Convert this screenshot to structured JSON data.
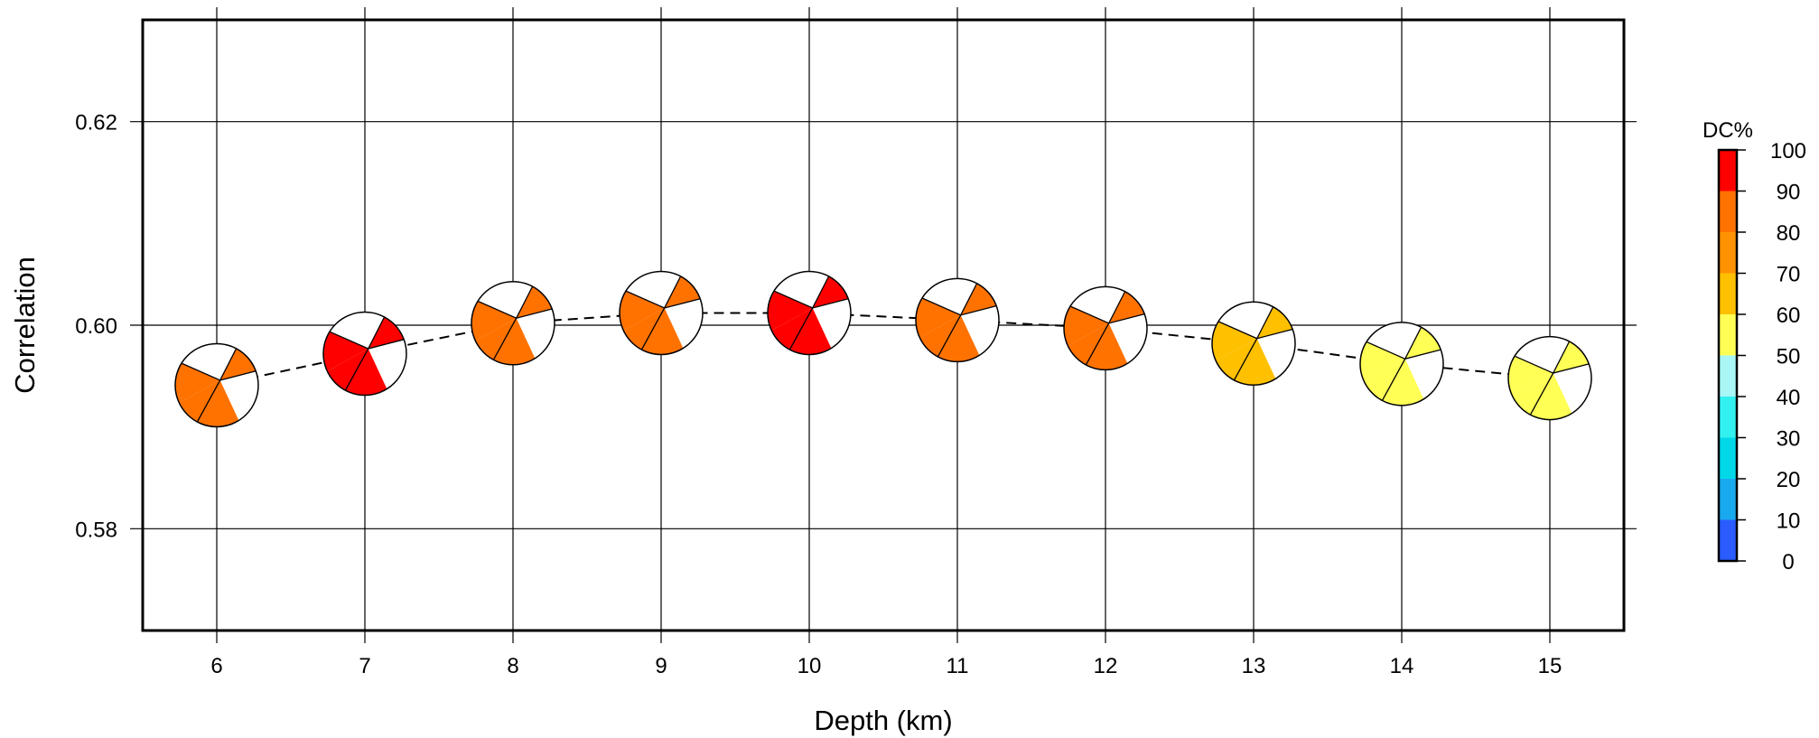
{
  "chart_data": {
    "type": "scatter",
    "title": "",
    "xlabel": "Depth (km)",
    "ylabel": "Correlation",
    "xlim": [
      5.5,
      15.5
    ],
    "ylim": [
      0.57,
      0.63
    ],
    "xticks": [
      6,
      7,
      8,
      9,
      10,
      11,
      12,
      13,
      14,
      15
    ],
    "xtick_labels": [
      "6",
      "7",
      "8",
      "9",
      "10",
      "11",
      "12",
      "13",
      "14",
      "15"
    ],
    "yticks": [
      0.58,
      0.6,
      0.62
    ],
    "ytick_labels": [
      "0.58",
      "0.60",
      "0.62"
    ],
    "grid": true,
    "line_style": "dashed",
    "marker": "focal-mechanism beachball",
    "points": [
      {
        "x": 6,
        "y": 0.5941,
        "dc": 80
      },
      {
        "x": 7,
        "y": 0.5972,
        "dc": 95
      },
      {
        "x": 8,
        "y": 0.6002,
        "dc": 82
      },
      {
        "x": 9,
        "y": 0.6012,
        "dc": 82
      },
      {
        "x": 10,
        "y": 0.6012,
        "dc": 95
      },
      {
        "x": 11,
        "y": 0.6005,
        "dc": 82
      },
      {
        "x": 12,
        "y": 0.5997,
        "dc": 82
      },
      {
        "x": 13,
        "y": 0.5982,
        "dc": 65
      },
      {
        "x": 14,
        "y": 0.5962,
        "dc": 55
      },
      {
        "x": 15,
        "y": 0.5948,
        "dc": 55
      }
    ],
    "colorbar": {
      "title": "DC%",
      "range": [
        0,
        100
      ],
      "ticks": [
        "0",
        "10",
        "20",
        "30",
        "40",
        "50",
        "60",
        "70",
        "80",
        "90",
        "100"
      ],
      "colors": [
        "#2a5cff",
        "#19a9ee",
        "#00d8e8",
        "#33f0f0",
        "#a8f6f6",
        "#ffff55",
        "#ffc000",
        "#ff9200",
        "#ff7200",
        "#ff0000"
      ]
    }
  }
}
